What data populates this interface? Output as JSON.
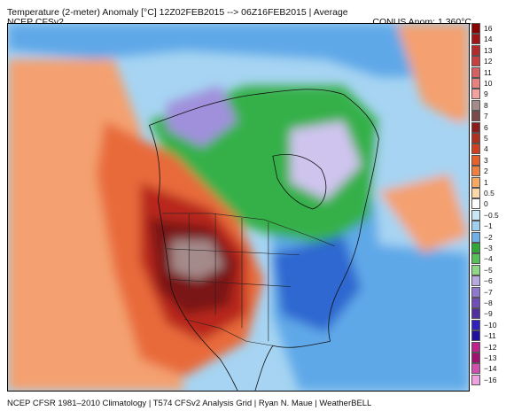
{
  "header": {
    "title": "Temperature (2-meter) Anomaly  [°C] 12Z02FEB2015 --> 06Z16FEB2015 | Average",
    "model": "NCEP CFSv2",
    "conus_anom": "CONUS Anom: 1.360°C"
  },
  "legend": {
    "values": [
      "16",
      "14",
      "13",
      "12",
      "11",
      "10",
      "9",
      "8",
      "7",
      "6",
      "5",
      "4",
      "3",
      "2",
      "1",
      "0.5",
      "0",
      "−0.5",
      "−1",
      "−2",
      "−3",
      "−4",
      "−5",
      "−6",
      "−7",
      "−8",
      "−9",
      "−10",
      "−11",
      "−12",
      "−13",
      "−14",
      "−16"
    ],
    "colors": [
      "#8b0000",
      "#a11515",
      "#b52a2a",
      "#c94040",
      "#d96060",
      "#e88080",
      "#f2a0a0",
      "#a58a8a",
      "#7a4a4a",
      "#8c1c1c",
      "#b03020",
      "#d04020",
      "#e8602a",
      "#f08040",
      "#f8a860",
      "#fcd8a8",
      "#ffffff",
      "#c8e8f8",
      "#a0d0f0",
      "#70b0e8",
      "#30a838",
      "#58c058",
      "#90d888",
      "#b8a8e0",
      "#9078d0",
      "#7050b8",
      "#5030a0",
      "#3020c0",
      "#2010a0",
      "#c0208c",
      "#a01070",
      "#d050b0",
      "#f0a0e0"
    ]
  },
  "map": {
    "region": "North America",
    "colors": {
      "warm_outer": "#f4a070",
      "warm_mid": "#e86a3a",
      "warm_strong": "#b8281c",
      "warm_core": "#7a1414",
      "hot_spot": "#a58a8a",
      "neutral": "#fce0c0",
      "cool_light": "#a6d4f2",
      "cool_mid": "#5fa8e8",
      "cool_deep": "#2f68d0",
      "green_light": "#7ed07a",
      "green_mid": "#34b04a",
      "purple": "#a090dc",
      "lavender": "#cfc4ee"
    }
  },
  "footer": {
    "text": "NCEP CFSR 1981–2010 Climatology | T574 CFSv2 Analysis Grid | Ryan N. Maue | WeatherBELL"
  }
}
